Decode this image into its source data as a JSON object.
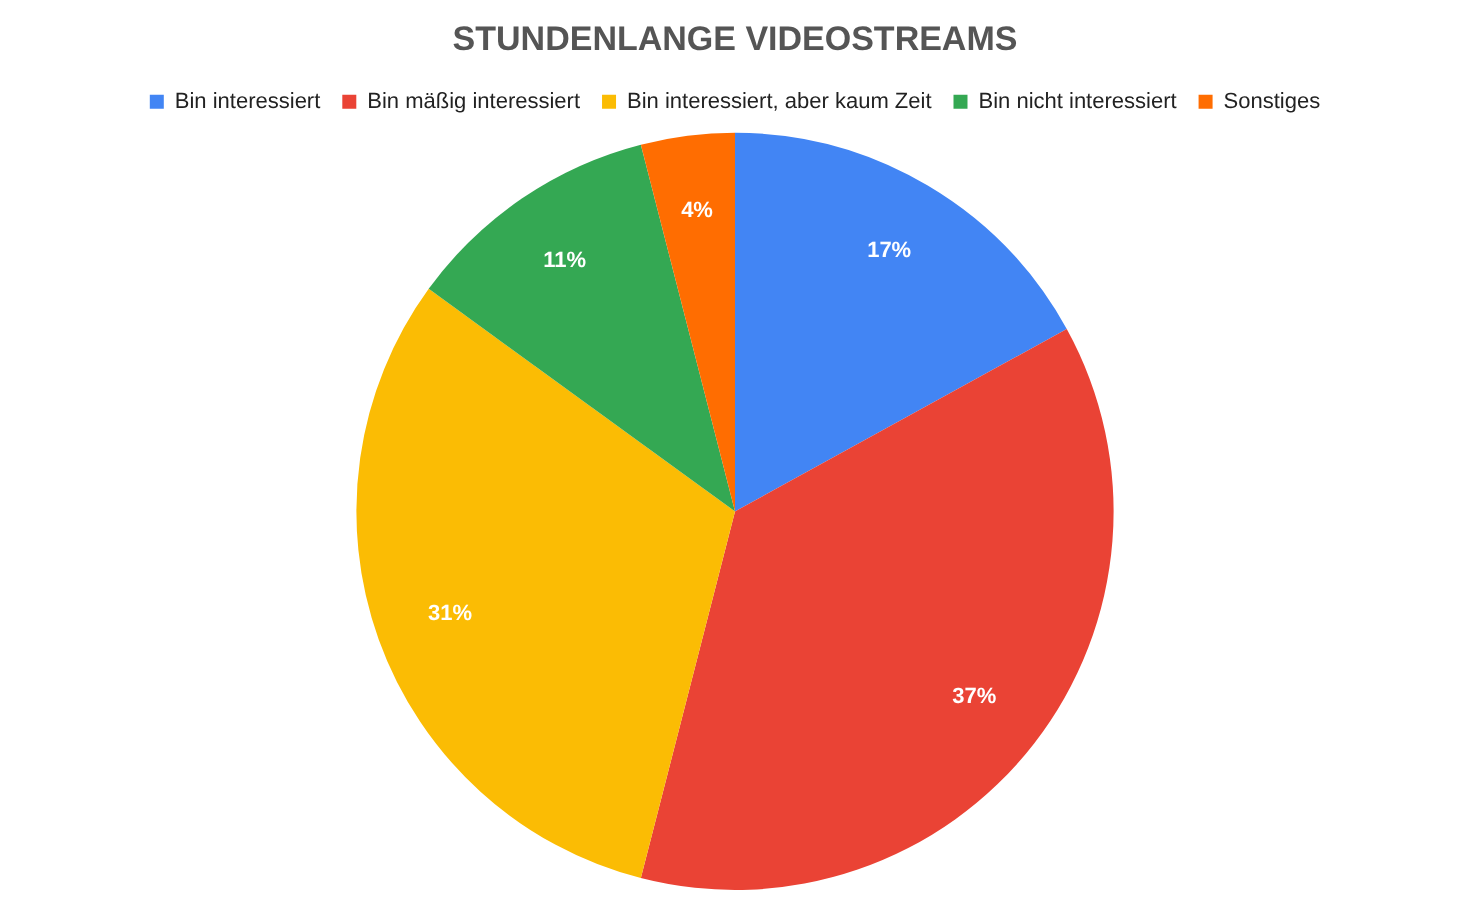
{
  "chart_data": {
    "type": "pie",
    "title": "STUNDENLANGE VIDEOSTREAMS",
    "categories": [
      "Bin interessiert",
      "Bin mäßig interessiert",
      "Bin interessiert, aber kaum Zeit",
      "Bin nicht interessiert",
      "Sonstiges"
    ],
    "values": [
      17,
      37,
      31,
      11,
      4
    ],
    "colors": [
      "#4285f4",
      "#ea4335",
      "#fbbc04",
      "#34a853",
      "#ff6d01"
    ],
    "value_labels": [
      "17%",
      "37%",
      "31%",
      "11%",
      "4%"
    ],
    "legend": "top"
  }
}
